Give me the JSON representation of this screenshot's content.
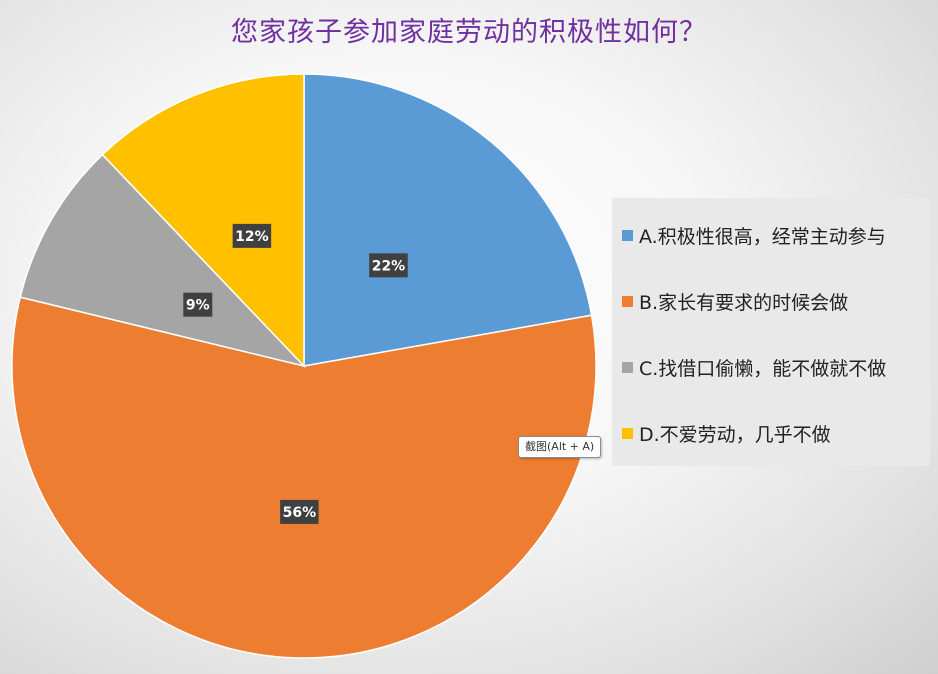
{
  "chart_data": {
    "type": "pie",
    "title": "您家孩子参加家庭劳动的积极性如何？",
    "categories": [
      "A.积极性很高，经常主动参与",
      "B.家长有要求的时候会做",
      "C.找借口偷懒，能不做就不做",
      "D.不爱劳动，几乎不做"
    ],
    "values": [
      22,
      56,
      9,
      12
    ],
    "data_labels": [
      "22%",
      "56%",
      "9%",
      "12%"
    ],
    "colors": [
      "#5b9bd5",
      "#ed7d31",
      "#a5a5a5",
      "#ffc000"
    ],
    "legend_position": "right"
  },
  "tooltip": {
    "text": "截图(Alt + A)"
  }
}
